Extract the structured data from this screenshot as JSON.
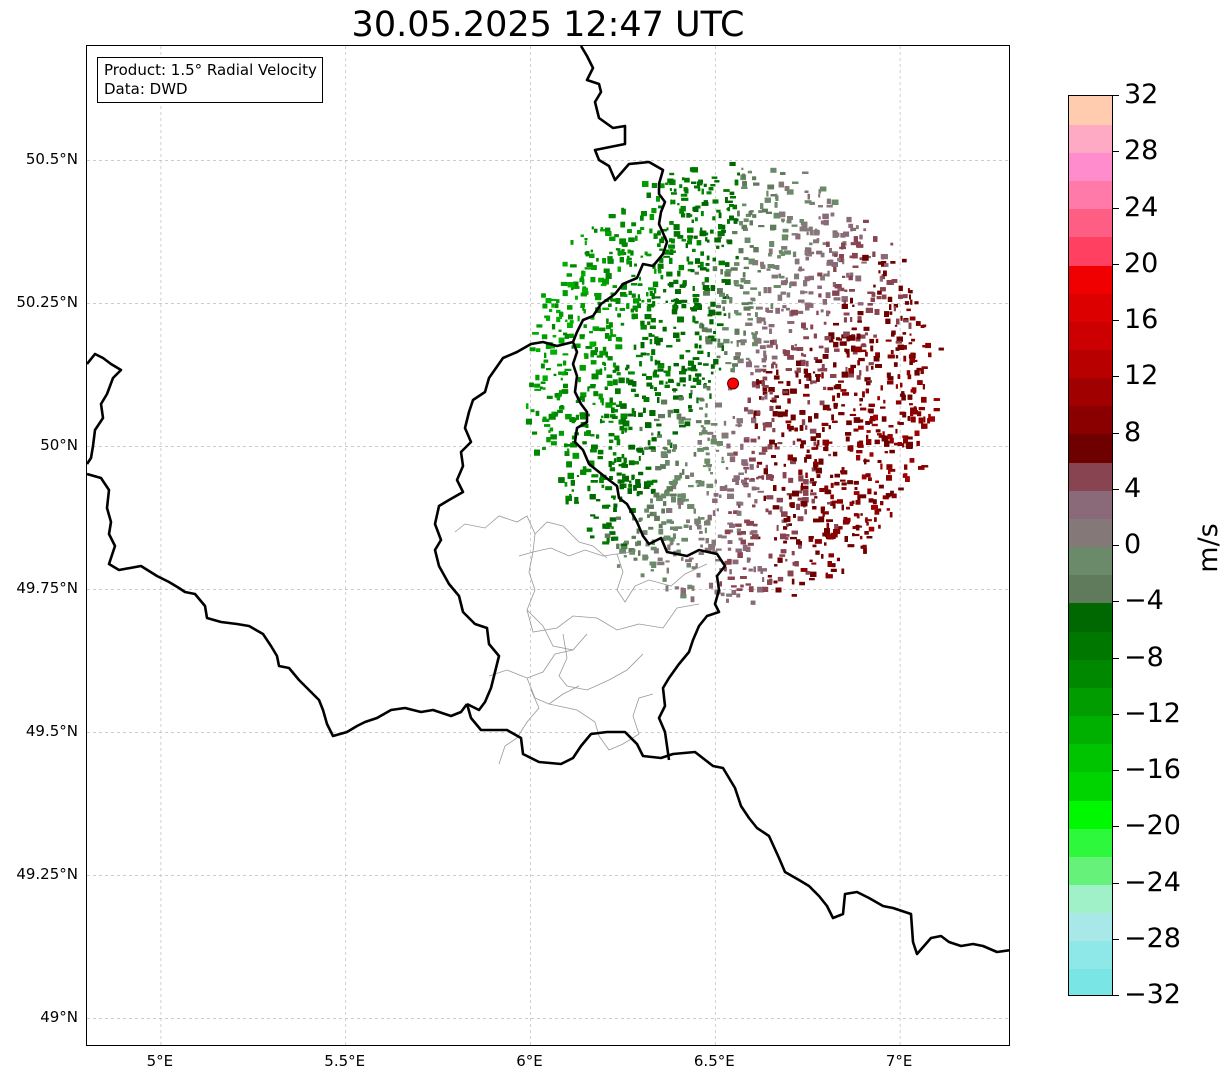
{
  "title": "30.05.2025 12:47 UTC",
  "info_box": {
    "product": "Product: 1.5° Radial Velocity",
    "data": "Data: DWD"
  },
  "map": {
    "extent": {
      "lon": [
        4.8,
        7.3
      ],
      "lat": [
        48.95,
        50.7
      ]
    },
    "lat_ticks": [
      {
        "value": 50.5,
        "label": "50.5°N"
      },
      {
        "value": 50.25,
        "label": "50.25°N"
      },
      {
        "value": 50.0,
        "label": "50°N"
      },
      {
        "value": 49.75,
        "label": "49.75°N"
      },
      {
        "value": 49.5,
        "label": "49.5°N"
      },
      {
        "value": 49.25,
        "label": "49.25°N"
      },
      {
        "value": 49.0,
        "label": "49°N"
      }
    ],
    "lon_ticks": [
      {
        "value": 5.0,
        "label": "5°E"
      },
      {
        "value": 5.5,
        "label": "5.5°E"
      },
      {
        "value": 6.0,
        "label": "6°E"
      },
      {
        "value": 6.5,
        "label": "6.5°E"
      },
      {
        "value": 7.0,
        "label": "7°E"
      }
    ],
    "radar_site": {
      "lon": 6.548,
      "lat": 50.11,
      "color": "#ff0000"
    },
    "radar_range_deg": {
      "lon": 0.55,
      "lat": 0.38
    },
    "colors": {
      "border": "#000000",
      "grid": "#bbbbbb",
      "admin": "#999999",
      "marker": "#ff0000"
    }
  },
  "colorbar": {
    "unit": "m/s",
    "min": -32,
    "max": 32,
    "step": 2,
    "ticks": [
      "32",
      "28",
      "24",
      "20",
      "16",
      "12",
      "8",
      "4",
      "0",
      "−4",
      "−8",
      "−12",
      "−16",
      "−20",
      "−24",
      "−28",
      "−32"
    ],
    "colors": [
      "#7ae5e5",
      "#8ee8e8",
      "#a8e8e8",
      "#a0f0c8",
      "#66f27a",
      "#2ef83c",
      "#00f800",
      "#00d400",
      "#00c400",
      "#00b000",
      "#009c00",
      "#008800",
      "#007800",
      "#006800",
      "#607a5c",
      "#6a8a6a",
      "#857878",
      "#8a6a78",
      "#884450",
      "#6e0000",
      "#8a0000",
      "#a00000",
      "#b80000",
      "#cc0000",
      "#dc0000",
      "#f00000",
      "#ff4060",
      "#ff5e84",
      "#ff7aa8",
      "#ff8ccc",
      "#ffaac4",
      "#ffccb0"
    ]
  }
}
